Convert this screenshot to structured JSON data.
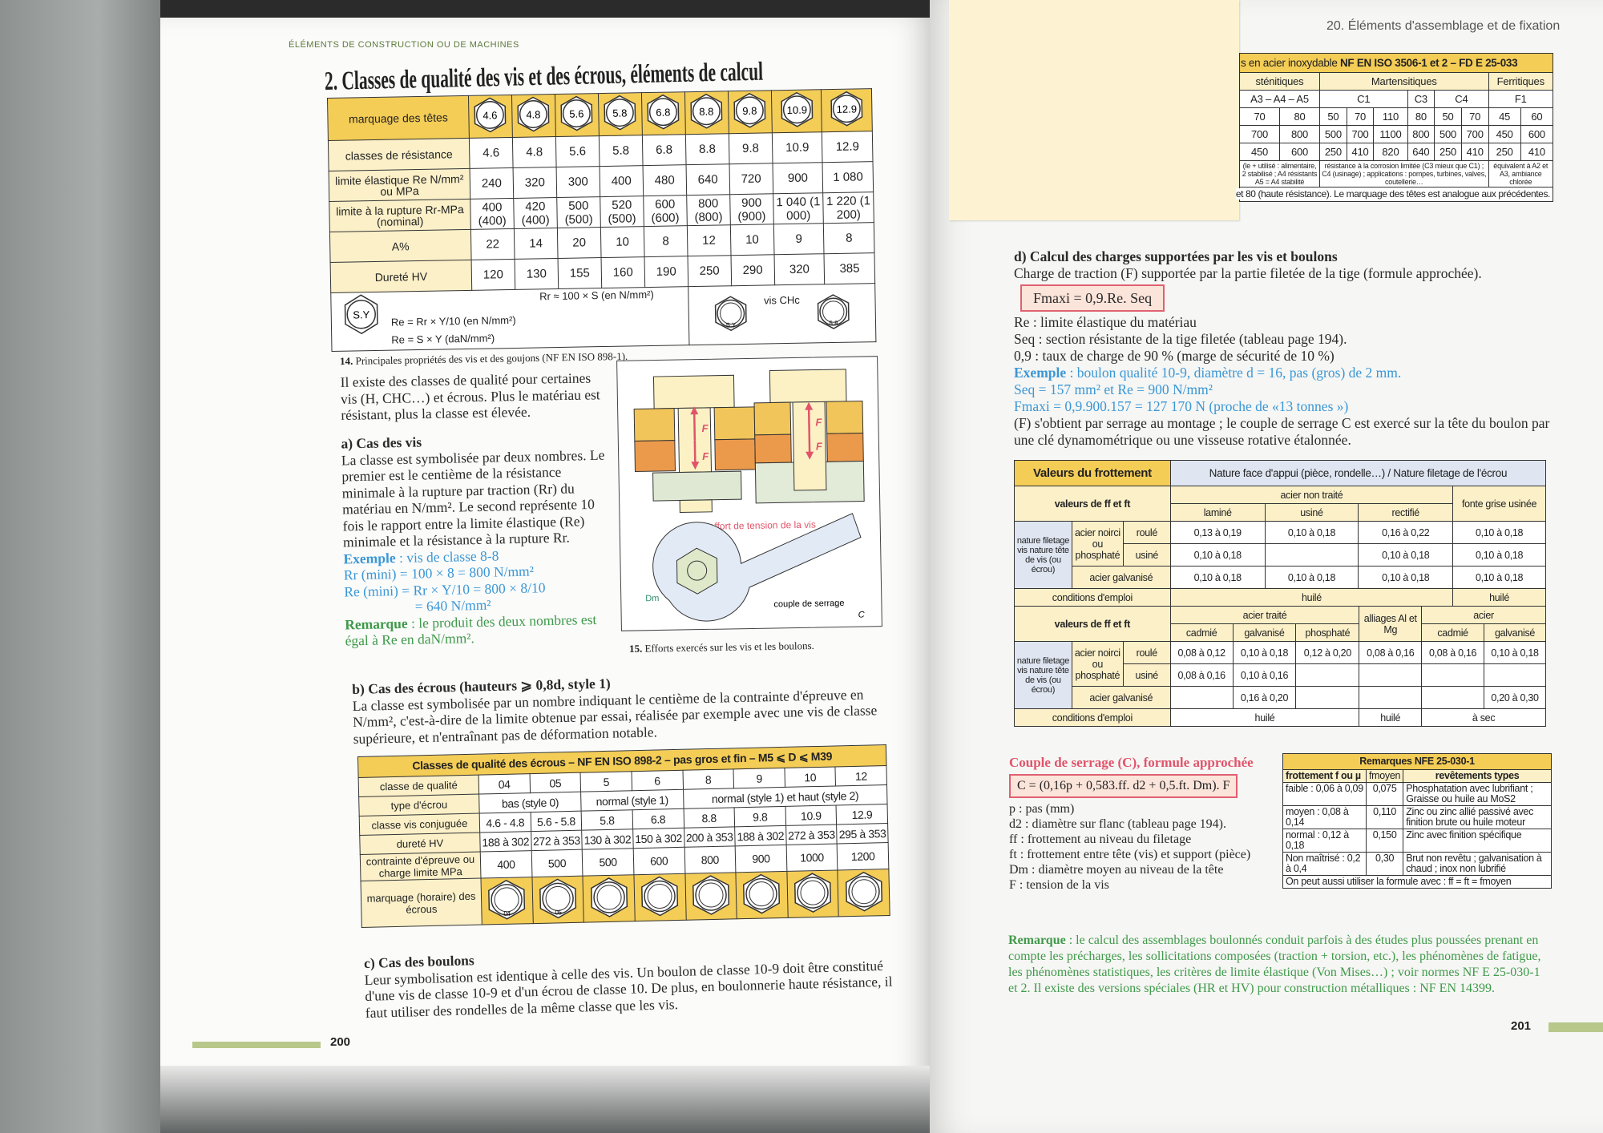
{
  "left_page": {
    "running_header": "ÉLÉMENTS DE CONSTRUCTION OU DE MACHINES",
    "title": "2. Classes de qualité des vis et des écrous, éléments de calcul",
    "vis_table": {
      "head_label": "marquage des têtes",
      "heads": [
        "4.6",
        "4.8",
        "5.6",
        "5.8",
        "6.8",
        "8.8",
        "9.8",
        "10.9",
        "12.9"
      ],
      "rows": [
        {
          "label": "classes de résistance",
          "values": [
            "4.6",
            "4.8",
            "5.6",
            "5.8",
            "6.8",
            "8.8",
            "9.8",
            "10.9",
            "12.9"
          ]
        },
        {
          "label": "limite élastique Re N/mm² ou MPa",
          "values": [
            "240",
            "320",
            "300",
            "400",
            "480",
            "640",
            "720",
            "900",
            "1 080"
          ]
        },
        {
          "label": "limite à la rupture Rr-MPa (nominal)",
          "values": [
            "400 (400)",
            "420 (400)",
            "500 (500)",
            "520 (500)",
            "600 (600)",
            "800 (800)",
            "900 (900)",
            "1 040 (1 000)",
            "1 220 (1 200)"
          ]
        },
        {
          "label": "A%",
          "values": [
            "22",
            "14",
            "20",
            "10",
            "8",
            "12",
            "10",
            "9",
            "8"
          ]
        },
        {
          "label": "Dureté HV",
          "values": [
            "120",
            "130",
            "155",
            "160",
            "190",
            "250",
            "290",
            "320",
            "385"
          ]
        }
      ],
      "footer": {
        "icon_label": "S.Y",
        "formula_1": "Re = Rr × Y/10 (en N/mm²)",
        "formula_2": "Re = S × Y (daN/mm²)",
        "formula_3": "Rr ≈ 100 × S (en N/mm²)",
        "chc_icon_label": "S.Y",
        "chc_label": "vis CHc",
        "chc_example_label": "5.8"
      }
    },
    "caption_14_num": "14.",
    "caption_14": "Principales propriétés des vis et des goujons (NF EN ISO 898-1).",
    "intro": "Il existe des classes de qualité pour certaines vis (H, CHC…) et écrous. Plus le matériau est résistant, plus la classe est élevée.",
    "a_title": "a) Cas des vis",
    "a_text": "La classe est symbolisée par deux nombres. Le premier est le centième de la résistance minimale à la rupture par traction (Rr) du matériau en N/mm². Le second représente 10 fois le rapport entre la limite élastique (Re) minimale et la résistance à la rupture Rr.",
    "a_example_label": "Exemple",
    "a_example": ": vis de classe 8-8",
    "a_ex_line1": "Rr (mini) = 100 × 8 = 800 N/mm²",
    "a_ex_line2": "Re (mini) = Rr × Y/10 = 800 × 8/10",
    "a_ex_line3": "= 640 N/mm²",
    "a_remark_label": "Remarque",
    "a_remark": ": le produit des deux nombres est égal à Re en daN/mm².",
    "figure15": {
      "f_label": "F",
      "f_caption": "F = effort de tension de la vis",
      "dm_label": "Dm",
      "couple_label": "couple de serrage",
      "c_label": "C",
      "caption_num": "15.",
      "caption": "Efforts exercés sur les vis et les boulons."
    },
    "b_title": "b) Cas des écrous (hauteurs ⩾ 0,8d, style 1)",
    "b_text": "La classe est symbolisée par un nombre indiquant le centième de la contrainte d'épreuve en N/mm², c'est-à-dire de la limite obtenue par essai, réalisée par exemple avec une vis de classe supérieure, et n'entraînant pas de déformation notable.",
    "ecrou_table": {
      "title": "Classes de qualité des écrous – NF EN ISO 898-2 – pas gros et fin – M5 ⩽ D ⩽ M39",
      "class_label": "classe de qualité",
      "classes": [
        "04",
        "05",
        "5",
        "6",
        "8",
        "9",
        "10",
        "12"
      ],
      "type_label": "type d'écrou",
      "types": [
        "bas (style 0)",
        "normal (style 1)",
        "normal (style 1) et haut (style 2)"
      ],
      "rows": [
        {
          "label": "classe vis conjuguée",
          "values": [
            "4.6 - 4.8",
            "5.6 - 5.8",
            "5.8",
            "6.8",
            "8.8",
            "9.8",
            "10.9",
            "12.9"
          ]
        },
        {
          "label": "dureté HV",
          "values": [
            "188 à 302",
            "272 à 353",
            "130 à 302",
            "150 à 302",
            "200 à 353",
            "188 à 302",
            "272 à 353",
            "295 à 353"
          ]
        },
        {
          "label": "contrainte d'épreuve ou charge limite MPa",
          "values": [
            "400",
            "500",
            "500",
            "600",
            "800",
            "900",
            "1000",
            "1200"
          ]
        }
      ],
      "marking_label": "marquage (horaire) des écrous",
      "marking_texts": [
        "04",
        "05",
        "",
        "",
        "",
        "",
        "",
        ""
      ]
    },
    "c_title": "c) Cas des boulons",
    "c_text": "Leur symbolisation est identique à celle des vis. Un boulon de classe 10-9 doit être constitué d'une vis de classe 10-9 et d'un écrou de classe 10. De plus, en boulonnerie haute résistance, il faut utiliser des rondelles de la même classe que les vis.",
    "page_number": "200"
  },
  "right_page": {
    "running_header": "20. Éléments d'assemblage et de fixation",
    "inox_table": {
      "title_plain": "s en acier inoxydable ",
      "title_bold": "NF EN ISO 3506-1 et 2 – FD E 25-033",
      "groups": [
        "sténitiques",
        "Martensitiques",
        "Ferritiques"
      ],
      "subgroups": [
        "A3 – A4 – A5",
        "C1",
        "C3",
        "C4",
        "F1"
      ],
      "classes": [
        "70",
        "80",
        "50",
        "70",
        "110",
        "80",
        "50",
        "70",
        "45",
        "60"
      ],
      "row_rupture": [
        "700",
        "800",
        "500",
        "700",
        "1100",
        "800",
        "500",
        "700",
        "450",
        "600"
      ],
      "row_elastic": [
        "450",
        "600",
        "250",
        "410",
        "820",
        "640",
        "250",
        "410",
        "250",
        "410"
      ],
      "notes": [
        "(le + utilisé : alimentaire, 2 stabilisé ; A4 résistants A5 = A4 stabilité",
        "résistance à la corrosion limitée (C3 mieux que C1) ; C4 (usinage) ; applications : pompes, turbines, valves, coutellerie…",
        "équivalent à A2 et A3, ambiance chlorée"
      ],
      "footer": "et 80 (haute résistance). Le marquage des têtes est analogue aux précédentes."
    },
    "d_title": "d) Calcul des charges supportées par les vis et boulons",
    "d_intro": "Charge de traction (F) supportée par la partie filetée de la tige (formule approchée).",
    "d_formula": "Fmaxi = 0,9.Re. Seq",
    "d_def1": "Re : limite élastique du matériau",
    "d_def2": "Seq : section résistante de la tige filetée (tableau page 194).",
    "d_def3": "0,9 : taux de charge de 90 % (marge de sécurité de 10 %)",
    "d_example_label": "Exemple",
    "d_example": ": boulon qualité 10-9, diamètre d = 16, pas (gros) de 2 mm.",
    "d_ex_line1": "Seq = 157 mm² et Re = 900 N/mm²",
    "d_ex_line2": "Fmaxi = 0,9.900.157 = 127 170 N (proche de «13 tonnes »)",
    "d_text": "(F) s'obtient par serrage au montage ; le couple de serrage C est exercé sur la tête du boulon par une clé dynamométrique ou une visseuse rotative étalonnée.",
    "friction_table": {
      "title": "Valeurs du frottement",
      "header": "Nature face d'appui (pièce, rondelle…) / Nature filetage de l'écrou",
      "values_label": "valeurs de ff et ft",
      "nature_label": "nature filetage vis nature tête de vis (ou écrou)",
      "noirci_label": "acier noirci ou phosphaté",
      "roule": "roulé",
      "usine": "usiné",
      "galvanise_label": "acier galvanisé",
      "conditions_label": "conditions d'emploi",
      "upper": {
        "group": "acier non traité",
        "cols": [
          "laminé",
          "usiné",
          "rectifié"
        ],
        "fonte": "fonte grise usinée",
        "roule": [
          "0,13 à 0,19",
          "0,10 à 0,18",
          "0,16 à 0,22",
          "0,10 à 0,18"
        ],
        "usine": [
          "0,10 à 0,18",
          "",
          "0,10 à 0,18",
          "0,10 à 0,18"
        ],
        "galvanise": [
          "0,10 à 0,18",
          "0,10 à 0,18",
          "0,10 à 0,18",
          "0,10 à 0,18"
        ],
        "conditions": [
          "huilé",
          "huilé"
        ]
      },
      "lower": {
        "group1": "acier traité",
        "cols1": [
          "cadmié",
          "galvanisé",
          "phosphaté"
        ],
        "alliages": "alliages Al et Mg",
        "group2": "acier",
        "cols2": [
          "cadmié",
          "galvanisé"
        ],
        "roule": [
          "0,08 à 0,12",
          "0,10 à 0,18",
          "0,12 à 0,20",
          "0,08 à 0,16",
          "0,08 à 0,16",
          "0,10 à 0,18"
        ],
        "usine": [
          "0,08 à 0,16",
          "0,10 à 0,16",
          "",
          "",
          "",
          ""
        ],
        "galvanise": [
          "",
          "0,16 à 0,20",
          "",
          "",
          "",
          "0,20 à 0,30"
        ],
        "conditions": [
          "huilé",
          "huilé",
          "à sec"
        ]
      }
    },
    "couple_title": "Couple de serrage (C), formule approchée",
    "couple_formula": "C = (0,16p + 0,583.ff. d2 + 0,5.ft. Dm). F",
    "couple_defs": [
      "p : pas (mm)",
      "d2 : diamètre sur flanc (tableau page 194).",
      "ff : frottement au niveau du filetage",
      "ft : frottement entre tête (vis) et support (pièce)",
      "Dm : diamètre moyen au niveau de la tête",
      "F : tension de la vis"
    ],
    "remarks_table": {
      "title": "Remarques NFE 25-030-1",
      "headers": [
        "frottement f ou µ",
        "fmoyen",
        "revêtements types"
      ],
      "rows": [
        [
          "faible : 0,06 à 0,09",
          "0,075",
          "Phosphatation avec lubrifiant ; Graisse ou huile au MoS2"
        ],
        [
          "moyen : 0,08 à 0,14",
          "0,110",
          "Zinc ou zinc allié passivé avec finition brute ou huile moteur"
        ],
        [
          "normal : 0,12 à 0,18",
          "0,150",
          "Zinc avec finition spécifique"
        ],
        [
          "Non maîtrisé : 0,2 à 0,4",
          "0,30",
          "Brut non revêtu ; galvanisation à chaud ; inox non lubrifié"
        ]
      ],
      "footer": "On peut aussi utiliser la formule avec : ff = ft = fmoyen"
    },
    "remark_label": "Remarque",
    "remark": ": le calcul des assemblages boulonnés conduit parfois à des études plus poussées prenant en compte les précharges, les sollicitations composées (traction + torsion, etc.), les phénomènes de fatigue, les phénomènes statistiques, les critères de limite élastique (Von Mises…) ; voir normes NF E 25-030-1 et 2. Il existe des versions spéciales (HR et HV) pour construction métalliques : NF EN 14399.",
    "page_number": "201"
  },
  "colors": {
    "table_header_gold": "#f4cd56",
    "table_label_cream": "#fbf0c8",
    "example_blue": "#3a97d6",
    "remark_green": "#3f9a4a",
    "formula_red": "#e06070",
    "sticky_note": "#fdf3d2"
  }
}
